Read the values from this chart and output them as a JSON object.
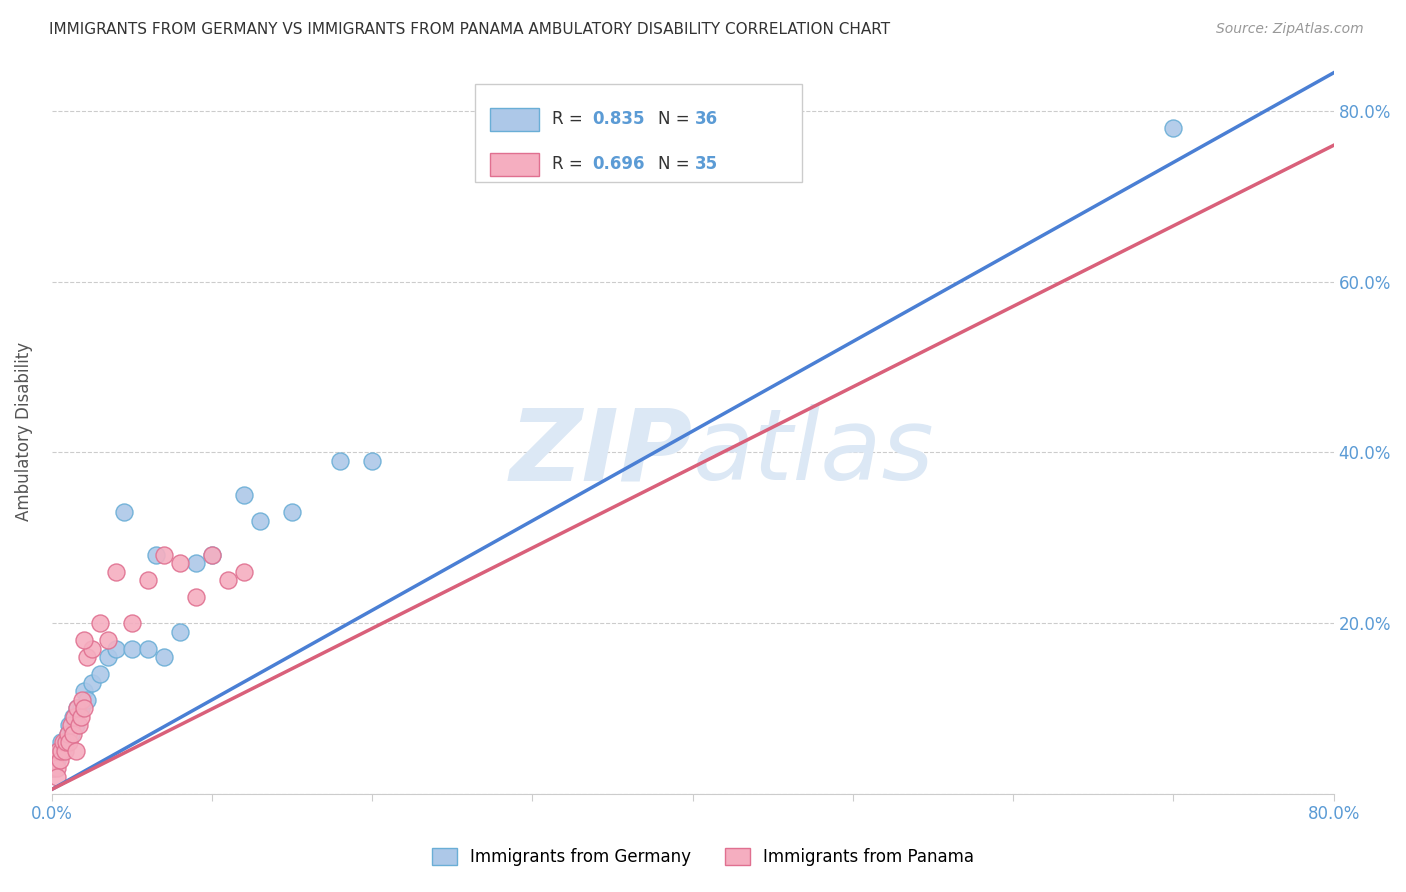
{
  "title": "IMMIGRANTS FROM GERMANY VS IMMIGRANTS FROM PANAMA AMBULATORY DISABILITY CORRELATION CHART",
  "source": "Source: ZipAtlas.com",
  "ylabel": "Ambulatory Disability",
  "x_min": 0.0,
  "x_max": 0.8,
  "y_min": 0.0,
  "y_max": 0.85,
  "x_ticks": [
    0.0,
    0.1,
    0.2,
    0.3,
    0.4,
    0.5,
    0.6,
    0.7,
    0.8
  ],
  "x_tick_labels": [
    "0.0%",
    "",
    "",
    "",
    "",
    "",
    "",
    "",
    "80.0%"
  ],
  "y_ticks": [
    0.0,
    0.2,
    0.4,
    0.6,
    0.8
  ],
  "y_tick_labels": [
    "",
    "20.0%",
    "40.0%",
    "60.0%",
    "80.0%"
  ],
  "germany_color": "#adc8e8",
  "germany_edge": "#6aaed6",
  "panama_color": "#f5aec0",
  "panama_edge": "#e07090",
  "trend_germany_color": "#4a7fd4",
  "trend_panama_color": "#d9607a",
  "watermark_color": "#dce8f5",
  "legend_R_germany": "0.835",
  "legend_N_germany": "36",
  "legend_R_panama": "0.696",
  "legend_N_panama": "35",
  "germany_scatter_x": [
    0.001,
    0.002,
    0.003,
    0.004,
    0.005,
    0.006,
    0.007,
    0.008,
    0.009,
    0.01,
    0.011,
    0.012,
    0.013,
    0.015,
    0.016,
    0.018,
    0.02,
    0.022,
    0.025,
    0.03,
    0.035,
    0.04,
    0.045,
    0.05,
    0.06,
    0.065,
    0.07,
    0.08,
    0.09,
    0.1,
    0.12,
    0.13,
    0.15,
    0.18,
    0.2,
    0.7
  ],
  "germany_scatter_y": [
    0.03,
    0.04,
    0.04,
    0.05,
    0.05,
    0.06,
    0.05,
    0.06,
    0.06,
    0.07,
    0.08,
    0.07,
    0.09,
    0.08,
    0.1,
    0.1,
    0.12,
    0.11,
    0.13,
    0.14,
    0.16,
    0.17,
    0.33,
    0.17,
    0.17,
    0.28,
    0.16,
    0.19,
    0.27,
    0.28,
    0.35,
    0.32,
    0.33,
    0.39,
    0.39,
    0.78
  ],
  "panama_scatter_x": [
    0.001,
    0.002,
    0.003,
    0.004,
    0.005,
    0.006,
    0.007,
    0.008,
    0.009,
    0.01,
    0.011,
    0.012,
    0.013,
    0.014,
    0.015,
    0.016,
    0.017,
    0.018,
    0.019,
    0.02,
    0.022,
    0.025,
    0.03,
    0.035,
    0.04,
    0.05,
    0.06,
    0.07,
    0.08,
    0.09,
    0.1,
    0.11,
    0.12,
    0.02,
    0.003
  ],
  "panama_scatter_y": [
    0.03,
    0.04,
    0.03,
    0.05,
    0.04,
    0.05,
    0.06,
    0.05,
    0.06,
    0.07,
    0.06,
    0.08,
    0.07,
    0.09,
    0.05,
    0.1,
    0.08,
    0.09,
    0.11,
    0.1,
    0.16,
    0.17,
    0.2,
    0.18,
    0.26,
    0.2,
    0.25,
    0.28,
    0.27,
    0.23,
    0.28,
    0.25,
    0.26,
    0.18,
    0.02
  ],
  "trend_germany_x0": 0.0,
  "trend_germany_y0": 0.005,
  "trend_germany_x1": 0.8,
  "trend_germany_y1": 0.845,
  "trend_panama_x0": 0.0,
  "trend_panama_y0": 0.005,
  "trend_panama_x1": 0.8,
  "trend_panama_y1": 0.76
}
